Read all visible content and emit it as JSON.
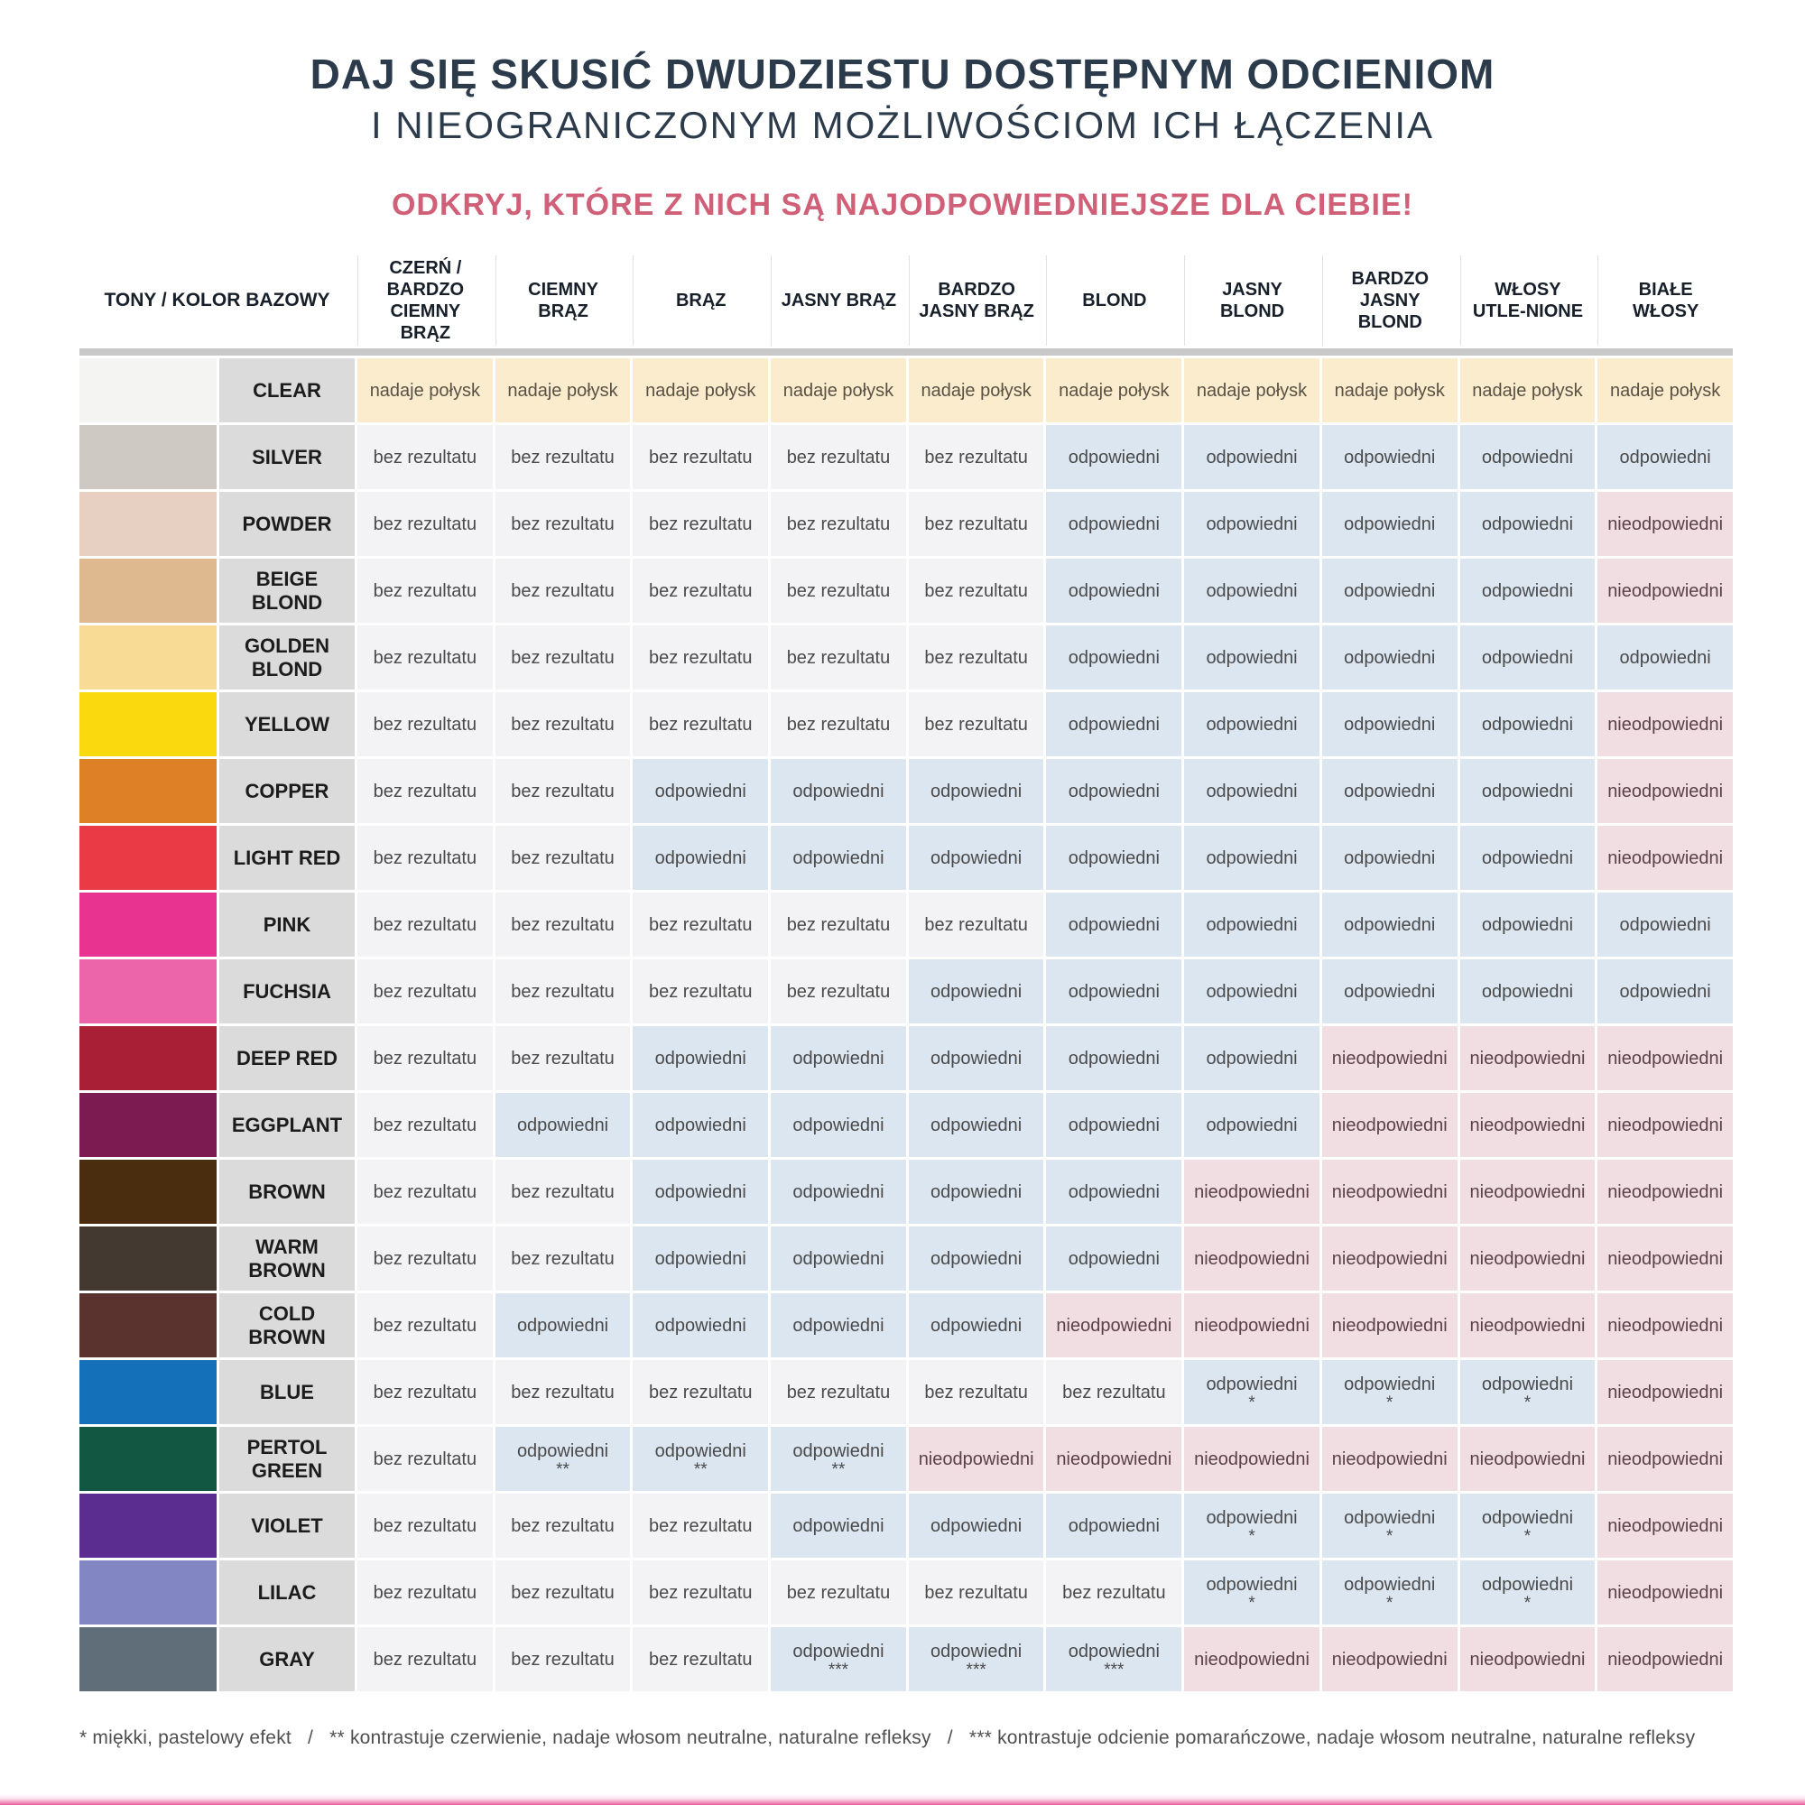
{
  "page": {
    "title_line1": "DAJ SIĘ SKUSIĆ DWUDZIESTU DOSTĘPNYM ODCIENIOM",
    "title_line2": "I NIEOGRANICZONYM MOŻLIWOŚCIOM ICH ŁĄCZENIA",
    "highlight": "ODKRYJ, KTÓRE Z NICH SĄ NAJODPOWIEDNIEJSZE DLA CIEBIE!",
    "footnote": "* miękki, pastelowy efekt   /   ** kontrastuje czerwienie, nadaje włosom neutralne, naturalne refleksy   /   *** kontrastuje odcienie pomarańczowe, nadaje włosom neutralne, naturalne refleksy"
  },
  "colors": {
    "title_text": "#2c3b4b",
    "highlight_text": "#cf6077",
    "shine_bg": "#fbeccd",
    "none_bg": "#f3f3f5",
    "ok_bg": "#dce6f1",
    "bad_bg": "#f1dee2",
    "label_bg": "#dbdbdb",
    "divider": "#c8c8c8",
    "bottom_bar": "#e95f9b"
  },
  "chart_data": {
    "type": "table",
    "corner_header": "TONY / KOLOR BAZOWY",
    "columns": [
      "CZERŃ / BARDZO CIEMNY BRĄZ",
      "CIEMNY BRĄZ",
      "BRĄZ",
      "JASNY BRĄZ",
      "BARDZO JASNY BRĄZ",
      "BLOND",
      "JASNY BLOND",
      "BARDZO JASNY BLOND",
      "WŁOSY UTLE-NIONE",
      "BIAŁE WŁOSY"
    ],
    "value_labels": {
      "polysk": "nadaje połysk",
      "bez": "bez rezultatu",
      "odp": "odpowiedni",
      "nieodp": "nieodpowiedni"
    },
    "rows": [
      {
        "name": "CLEAR",
        "swatch": "#f4f4f2",
        "values": [
          "polysk",
          "polysk",
          "polysk",
          "polysk",
          "polysk",
          "polysk",
          "polysk",
          "polysk",
          "polysk",
          "polysk"
        ]
      },
      {
        "name": "SILVER",
        "swatch": "#cfc9c3",
        "values": [
          "bez",
          "bez",
          "bez",
          "bez",
          "bez",
          "odp",
          "odp",
          "odp",
          "odp",
          "odp"
        ]
      },
      {
        "name": "POWDER",
        "swatch": "#e7d0c2",
        "values": [
          "bez",
          "bez",
          "bez",
          "bez",
          "bez",
          "odp",
          "odp",
          "odp",
          "odp",
          "nieodp"
        ]
      },
      {
        "name": "BEIGE BLOND",
        "swatch": "#deb98f",
        "values": [
          "bez",
          "bez",
          "bez",
          "bez",
          "bez",
          "odp",
          "odp",
          "odp",
          "odp",
          "nieodp"
        ]
      },
      {
        "name": "GOLDEN BLOND",
        "swatch": "#f8dc95",
        "values": [
          "bez",
          "bez",
          "bez",
          "bez",
          "bez",
          "odp",
          "odp",
          "odp",
          "odp",
          "odp"
        ]
      },
      {
        "name": "YELLOW",
        "swatch": "#fad90f",
        "values": [
          "bez",
          "bez",
          "bez",
          "bez",
          "bez",
          "odp",
          "odp",
          "odp",
          "odp",
          "nieodp"
        ]
      },
      {
        "name": "COPPER",
        "swatch": "#dd8026",
        "values": [
          "bez",
          "bez",
          "odp",
          "odp",
          "odp",
          "odp",
          "odp",
          "odp",
          "odp",
          "nieodp"
        ]
      },
      {
        "name": "LIGHT RED",
        "swatch": "#e93a45",
        "values": [
          "bez",
          "bez",
          "odp",
          "odp",
          "odp",
          "odp",
          "odp",
          "odp",
          "odp",
          "nieodp"
        ]
      },
      {
        "name": "PINK",
        "swatch": "#e93390",
        "values": [
          "bez",
          "bez",
          "bez",
          "bez",
          "bez",
          "odp",
          "odp",
          "odp",
          "odp",
          "odp"
        ]
      },
      {
        "name": "FUCHSIA",
        "swatch": "#ec64a9",
        "values": [
          "bez",
          "bez",
          "bez",
          "bez",
          "odp",
          "odp",
          "odp",
          "odp",
          "odp",
          "odp"
        ]
      },
      {
        "name": "DEEP RED",
        "swatch": "#a92036",
        "values": [
          "bez",
          "bez",
          "odp",
          "odp",
          "odp",
          "odp",
          "odp",
          "nieodp",
          "nieodp",
          "nieodp"
        ]
      },
      {
        "name": "EGGPLANT",
        "swatch": "#7c1a52",
        "values": [
          "bez",
          "odp",
          "odp",
          "odp",
          "odp",
          "odp",
          "odp",
          "nieodp",
          "nieodp",
          "nieodp"
        ]
      },
      {
        "name": "BROWN",
        "swatch": "#4a2c0e",
        "values": [
          "bez",
          "bez",
          "odp",
          "odp",
          "odp",
          "odp",
          "nieodp",
          "nieodp",
          "nieodp",
          "nieodp"
        ]
      },
      {
        "name": "WARM BROWN",
        "swatch": "#443930",
        "values": [
          "bez",
          "bez",
          "odp",
          "odp",
          "odp",
          "odp",
          "nieodp",
          "nieodp",
          "nieodp",
          "nieodp"
        ]
      },
      {
        "name": "COLD BROWN",
        "swatch": "#5a332e",
        "values": [
          "bez",
          "odp",
          "odp",
          "odp",
          "odp",
          "nieodp",
          "nieodp",
          "nieodp",
          "nieodp",
          "nieodp"
        ]
      },
      {
        "name": "BLUE",
        "swatch": "#1470b8",
        "values": [
          "bez",
          "bez",
          "bez",
          "bez",
          "bez",
          "bez",
          "odp*",
          "odp*",
          "odp*",
          "nieodp"
        ]
      },
      {
        "name": "PERTOL GREEN",
        "swatch": "#115741",
        "values": [
          "bez",
          "odp**",
          "odp**",
          "odp**",
          "nieodp",
          "nieodp",
          "nieodp",
          "nieodp",
          "nieodp",
          "nieodp"
        ]
      },
      {
        "name": "VIOLET",
        "swatch": "#5c2d91",
        "values": [
          "bez",
          "bez",
          "bez",
          "odp",
          "odp",
          "odp",
          "odp*",
          "odp*",
          "odp*",
          "nieodp"
        ]
      },
      {
        "name": "LILAC",
        "swatch": "#8287c4",
        "values": [
          "bez",
          "bez",
          "bez",
          "bez",
          "bez",
          "bez",
          "odp*",
          "odp*",
          "odp*",
          "nieodp"
        ]
      },
      {
        "name": "GRAY",
        "swatch": "#5f6e79",
        "values": [
          "bez",
          "bez",
          "bez",
          "odp***",
          "odp***",
          "odp***",
          "nieodp",
          "nieodp",
          "nieodp",
          "nieodp"
        ]
      }
    ]
  }
}
